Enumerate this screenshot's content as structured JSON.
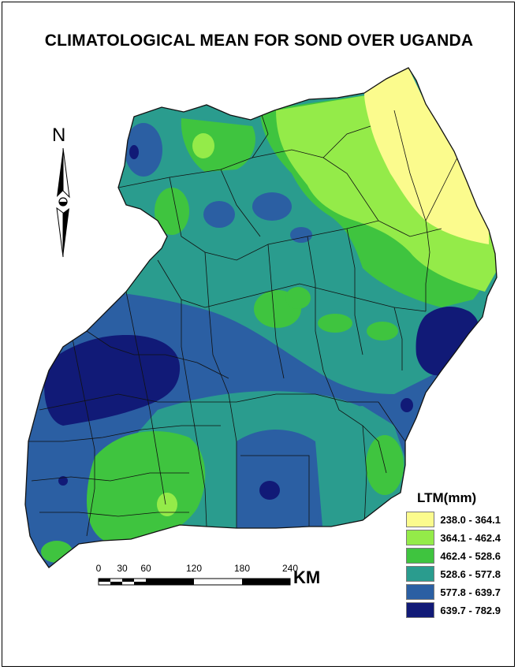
{
  "title": "CLIMATOLOGICAL MEAN FOR SOND OVER UGANDA",
  "north_arrow": {
    "label": "N"
  },
  "legend": {
    "title": "LTM(mm)",
    "classes": [
      {
        "label": "238.0 - 364.1",
        "color": "#fbfb8d"
      },
      {
        "label": "364.1 - 462.4",
        "color": "#94eb49"
      },
      {
        "label": "462.4 - 528.6",
        "color": "#3fc43f"
      },
      {
        "label": "528.6 - 577.8",
        "color": "#2a9c8e"
      },
      {
        "label": "577.8 - 639.7",
        "color": "#2b5fa3"
      },
      {
        "label": "639.7 - 782.9",
        "color": "#111a77"
      }
    ]
  },
  "scale_bar": {
    "unit": "KM",
    "ticks": [
      "0",
      "30",
      "60",
      "120",
      "180",
      "240"
    ]
  }
}
